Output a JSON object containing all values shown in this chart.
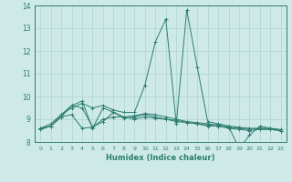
{
  "xlabel": "Humidex (Indice chaleur)",
  "background_color": "#ceeae8",
  "grid_color": "#aed4d0",
  "line_color": "#2d7d6e",
  "xlim": [
    -0.5,
    23.5
  ],
  "ylim": [
    8,
    14
  ],
  "yticks": [
    8,
    9,
    10,
    11,
    12,
    13,
    14
  ],
  "xticks": [
    0,
    1,
    2,
    3,
    4,
    5,
    6,
    7,
    8,
    9,
    10,
    11,
    12,
    13,
    14,
    15,
    16,
    17,
    18,
    19,
    20,
    21,
    22,
    23
  ],
  "lines": [
    {
      "x": [
        0,
        1,
        2,
        3,
        4,
        5,
        6,
        7,
        8,
        9,
        10,
        11,
        12,
        13,
        14,
        15,
        16,
        17,
        18,
        19,
        20,
        21,
        22,
        23
      ],
      "y": [
        8.6,
        8.8,
        9.2,
        9.5,
        9.7,
        9.5,
        9.6,
        9.4,
        9.3,
        9.3,
        10.5,
        12.4,
        13.4,
        8.8,
        13.8,
        11.3,
        8.9,
        8.8,
        8.7,
        7.7,
        8.3,
        8.7,
        8.6,
        8.5
      ]
    },
    {
      "x": [
        0,
        1,
        2,
        3,
        4,
        5,
        6,
        7,
        8,
        9,
        10,
        11,
        12,
        13,
        14,
        15,
        16,
        17,
        18,
        19,
        20,
        21,
        22,
        23
      ],
      "y": [
        8.6,
        8.7,
        9.2,
        9.6,
        9.8,
        8.6,
        9.5,
        9.3,
        9.1,
        9.0,
        9.1,
        9.05,
        9.0,
        8.9,
        8.85,
        8.8,
        8.75,
        8.7,
        8.65,
        8.6,
        8.55,
        8.6,
        8.6,
        8.55
      ]
    },
    {
      "x": [
        0,
        1,
        2,
        3,
        4,
        5,
        6,
        7,
        8,
        9,
        10,
        11,
        12,
        13,
        14,
        15,
        16,
        17,
        18,
        19,
        20,
        21,
        22,
        23
      ],
      "y": [
        8.55,
        8.7,
        9.1,
        9.2,
        8.6,
        8.65,
        8.9,
        9.3,
        9.05,
        9.1,
        9.2,
        9.1,
        9.0,
        8.95,
        8.85,
        8.8,
        8.7,
        8.7,
        8.6,
        8.55,
        8.5,
        8.55,
        8.55,
        8.5
      ]
    },
    {
      "x": [
        0,
        1,
        2,
        3,
        4,
        5,
        6,
        7,
        8,
        9,
        10,
        11,
        12,
        13,
        14,
        15,
        16,
        17,
        18,
        19,
        20,
        21,
        22,
        23
      ],
      "y": [
        8.55,
        8.7,
        9.1,
        9.6,
        9.5,
        8.65,
        9.0,
        9.1,
        9.1,
        9.15,
        9.25,
        9.2,
        9.1,
        9.0,
        8.9,
        8.85,
        8.8,
        8.75,
        8.7,
        8.65,
        8.6,
        8.6,
        8.55,
        8.5
      ]
    }
  ]
}
